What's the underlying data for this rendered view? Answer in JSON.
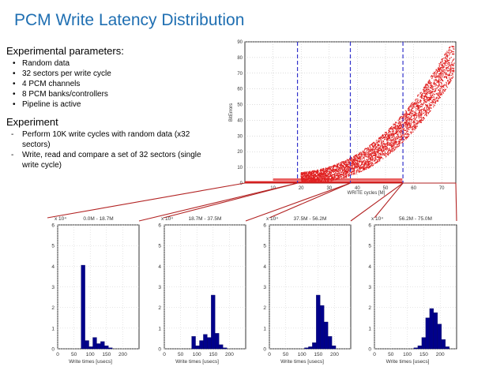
{
  "title": "PCM Write Latency Distribution",
  "params": {
    "heading": "Experimental parameters:",
    "items": [
      "Random data",
      "32 sectors per write cycle",
      "4 PCM channels",
      "8 PCM banks/controllers",
      "Pipeline is active"
    ]
  },
  "experiment": {
    "heading": "Experiment",
    "items": [
      "Perform 10K write cycles with random data (x32 sectors)",
      "Write, read and compare a set of 32 sectors (single write cycle)"
    ]
  },
  "colors": {
    "title": "#1f6fb2",
    "scatter": "#e02020",
    "bars": "#00008b",
    "divider": "#3333cc",
    "connector": "#b22222"
  },
  "chart_data": [
    {
      "type": "scatter",
      "xlabel": "WRITE cycles [M]",
      "ylabel": "BitErrors",
      "xlim": [
        0,
        75
      ],
      "ylim": [
        0,
        90
      ],
      "xticks": [
        10,
        20,
        30,
        40,
        50,
        60,
        70
      ],
      "yticks": [
        0,
        10,
        20,
        30,
        40,
        50,
        60,
        70,
        80,
        90
      ],
      "dividers": [
        18.7,
        37.5,
        56.2
      ],
      "grid": true
    },
    {
      "type": "bar",
      "title": "0.0M - 18.7M",
      "xlabel": "Write times [usecs]",
      "multiplier": "x 10⁴",
      "xlim": [
        0,
        250
      ],
      "ylim": [
        0,
        6
      ],
      "xticks": [
        0,
        50,
        100,
        150,
        200
      ],
      "yticks": [
        0,
        1,
        2,
        3,
        4,
        5,
        6
      ],
      "bin_width": 12,
      "bins": [
        [
          72,
          4.05
        ],
        [
          84,
          0.4
        ],
        [
          96,
          0.1
        ],
        [
          108,
          0.55
        ],
        [
          120,
          0.25
        ],
        [
          132,
          0.35
        ],
        [
          144,
          0.15
        ],
        [
          156,
          0.05
        ]
      ]
    },
    {
      "type": "bar",
      "title": "18.7M - 37.5M",
      "xlabel": "Write times [usecs]",
      "multiplier": "x 10⁴",
      "xlim": [
        0,
        250
      ],
      "ylim": [
        0,
        6
      ],
      "xticks": [
        0,
        50,
        100,
        150,
        200
      ],
      "yticks": [
        0,
        1,
        2,
        3,
        4,
        5,
        6
      ],
      "bin_width": 12,
      "bins": [
        [
          84,
          0.6
        ],
        [
          96,
          0.15
        ],
        [
          108,
          0.4
        ],
        [
          120,
          0.7
        ],
        [
          132,
          0.55
        ],
        [
          144,
          2.6
        ],
        [
          156,
          0.75
        ],
        [
          168,
          0.2
        ],
        [
          180,
          0.05
        ]
      ]
    },
    {
      "type": "bar",
      "title": "37.5M - 56.2M",
      "xlabel": "Write times [usecs]",
      "multiplier": "x 10⁴",
      "xlim": [
        0,
        250
      ],
      "ylim": [
        0,
        6
      ],
      "xticks": [
        0,
        50,
        100,
        150,
        200
      ],
      "yticks": [
        0,
        1,
        2,
        3,
        4,
        5,
        6
      ],
      "bin_width": 12,
      "bins": [
        [
          108,
          0.05
        ],
        [
          120,
          0.1
        ],
        [
          132,
          0.3
        ],
        [
          144,
          2.6
        ],
        [
          156,
          2.1
        ],
        [
          168,
          1.3
        ],
        [
          180,
          0.6
        ],
        [
          192,
          0.15
        ]
      ]
    },
    {
      "type": "bar",
      "title": "56.2M - 75.0M",
      "xlabel": "Write times [usecs]",
      "multiplier": "x 10⁴",
      "xlim": [
        0,
        250
      ],
      "ylim": [
        0,
        6
      ],
      "xticks": [
        0,
        50,
        100,
        150,
        200
      ],
      "yticks": [
        0,
        1,
        2,
        3,
        4,
        5,
        6
      ],
      "bin_width": 12,
      "bins": [
        [
          120,
          0.05
        ],
        [
          132,
          0.15
        ],
        [
          144,
          0.55
        ],
        [
          156,
          1.5
        ],
        [
          168,
          1.95
        ],
        [
          180,
          1.75
        ],
        [
          192,
          1.2
        ],
        [
          204,
          0.45
        ],
        [
          216,
          0.1
        ]
      ]
    }
  ]
}
